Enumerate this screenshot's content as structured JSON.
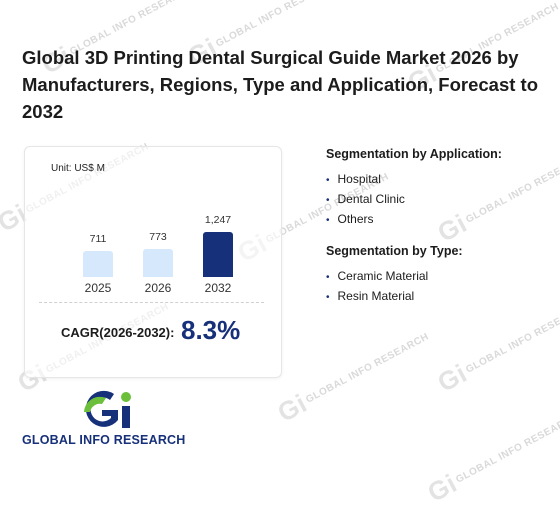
{
  "title": "Global 3D Printing Dental Surgical Guide Market 2026 by Manufacturers, Regions, Type and Application, Forecast to 2032",
  "watermark": "GLOBAL INFO RESEARCH",
  "chart_data": {
    "type": "bar",
    "unit": "Unit: US$ M",
    "categories": [
      "2025",
      "2026",
      "2032"
    ],
    "values": [
      711,
      773,
      1247
    ],
    "value_labels": [
      "711",
      "773",
      "1,247"
    ],
    "colors": [
      "#d6e8fb",
      "#d6e8fb",
      "#17307a"
    ]
  },
  "cagr": {
    "label": "CAGR(2026-2032):",
    "value": "8.3%"
  },
  "segmentation_application": {
    "heading": "Segmentation by Application:",
    "items": [
      "Hospital",
      "Dental Clinic",
      "Others"
    ]
  },
  "segmentation_type": {
    "heading": "Segmentation by Type:",
    "items": [
      "Ceramic Material",
      "Resin Material"
    ]
  },
  "logo": {
    "text": "GLOBAL INFO RESEARCH",
    "colors": [
      "#17307a",
      "#6cbf3b"
    ]
  }
}
